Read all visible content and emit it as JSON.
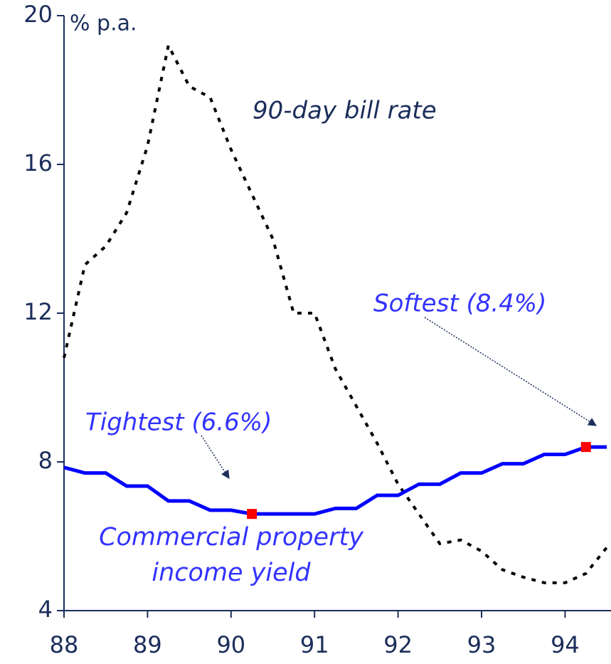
{
  "chart_data": {
    "type": "line",
    "y_label": "% p.a.",
    "x": [
      88,
      88.25,
      88.5,
      88.75,
      89,
      89.25,
      89.5,
      89.75,
      90,
      90.25,
      90.5,
      90.75,
      91,
      91.25,
      91.5,
      91.75,
      92,
      92.25,
      92.5,
      92.75,
      93,
      93.25,
      93.5,
      93.75,
      94,
      94.25,
      94.5
    ],
    "series": [
      {
        "name": "90-day bill rate",
        "color": "#000000",
        "dashed": true,
        "values": [
          10.8,
          13.3,
          13.8,
          14.7,
          16.5,
          19.2,
          18.1,
          17.8,
          16.4,
          15.2,
          14.0,
          12.0,
          12.0,
          10.5,
          9.5,
          8.5,
          7.4,
          6.6,
          5.8,
          5.9,
          5.6,
          5.1,
          4.9,
          4.75,
          4.75,
          5.0,
          5.7
        ]
      },
      {
        "name": "Commercial property income yield",
        "color": "#0000ff",
        "dashed": false,
        "values": [
          7.85,
          7.7,
          7.7,
          7.35,
          7.35,
          6.95,
          6.95,
          6.7,
          6.7,
          6.6,
          6.6,
          6.6,
          6.6,
          6.75,
          6.75,
          7.1,
          7.1,
          7.4,
          7.4,
          7.7,
          7.7,
          7.95,
          7.95,
          8.2,
          8.2,
          8.4,
          8.4
        ]
      }
    ],
    "highlights": [
      {
        "series": 1,
        "index": 9,
        "color": "#ff0000"
      },
      {
        "series": 1,
        "index": 25,
        "color": "#ff0000"
      }
    ],
    "annotations": [
      "Tightest (6.6%)",
      "Softest (8.4%)"
    ],
    "xlim": [
      88,
      94.55
    ],
    "xticks": [
      88,
      89,
      90,
      91,
      92,
      93,
      94
    ],
    "ylim": [
      4,
      20
    ],
    "yticks": [
      4,
      8,
      12,
      16,
      20
    ],
    "grid": false
  }
}
